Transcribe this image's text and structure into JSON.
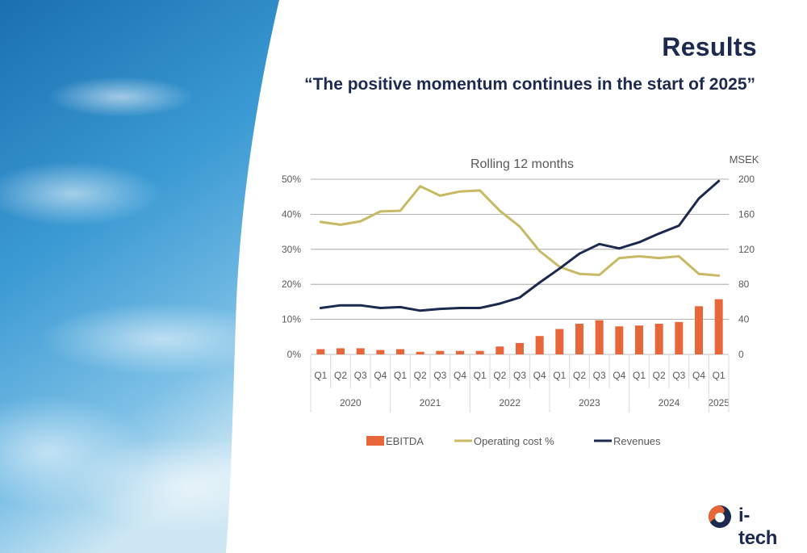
{
  "slide": {
    "title": "Results",
    "subtitle": "“The positive momentum continues in the start of 2025”",
    "brand": "i-tech"
  },
  "colors": {
    "navy": "#1b2a4e",
    "ebitda": "#e8673a",
    "operating_cost": "#c8b964",
    "grid": "#d9d9d9"
  },
  "chart_data": {
    "type": "bar",
    "title": "Rolling 12 months",
    "y2_unit_label": "MSEK",
    "quarters": [
      "Q1",
      "Q2",
      "Q3",
      "Q4",
      "Q1",
      "Q2",
      "Q3",
      "Q4",
      "Q1",
      "Q2",
      "Q3",
      "Q4",
      "Q1",
      "Q2",
      "Q3",
      "Q4",
      "Q1",
      "Q2",
      "Q3",
      "Q4",
      "Q1"
    ],
    "years": [
      {
        "label": "2020",
        "count": 4
      },
      {
        "label": "2021",
        "count": 4
      },
      {
        "label": "2022",
        "count": 4
      },
      {
        "label": "2023",
        "count": 4
      },
      {
        "label": "2024",
        "count": 4
      },
      {
        "label": "2025",
        "count": 1
      }
    ],
    "y_left": {
      "ticks": [
        "0%",
        "10%",
        "20%",
        "30%",
        "40%",
        "50%"
      ],
      "ylim": [
        0,
        50
      ]
    },
    "y_right": {
      "ticks": [
        "0",
        "40",
        "80",
        "120",
        "160",
        "200"
      ],
      "ylim": [
        0,
        200
      ]
    },
    "grid": true,
    "legend_position": "bottom",
    "series": [
      {
        "name": "EBITDA",
        "kind": "bar",
        "axis": "right",
        "values": [
          6,
          7,
          7,
          5,
          6,
          3,
          4,
          4,
          4,
          9,
          13,
          21,
          29,
          35,
          39,
          32,
          33,
          35,
          37,
          55,
          63
        ]
      },
      {
        "name": "Operating cost %",
        "kind": "line",
        "axis": "left",
        "values": [
          37.8,
          37.0,
          38.0,
          40.8,
          41.0,
          48.0,
          45.3,
          46.5,
          46.8,
          41.0,
          36.5,
          29.5,
          25.0,
          23.0,
          22.7,
          27.5,
          28.0,
          27.5,
          28.0,
          23.0,
          22.5
        ]
      },
      {
        "name": "Revenues",
        "kind": "line",
        "axis": "right",
        "values": [
          53,
          56,
          56,
          53,
          54,
          50,
          52,
          53,
          53,
          58,
          65,
          82,
          98,
          115,
          126,
          121,
          128,
          138,
          147,
          178,
          198
        ]
      }
    ]
  }
}
